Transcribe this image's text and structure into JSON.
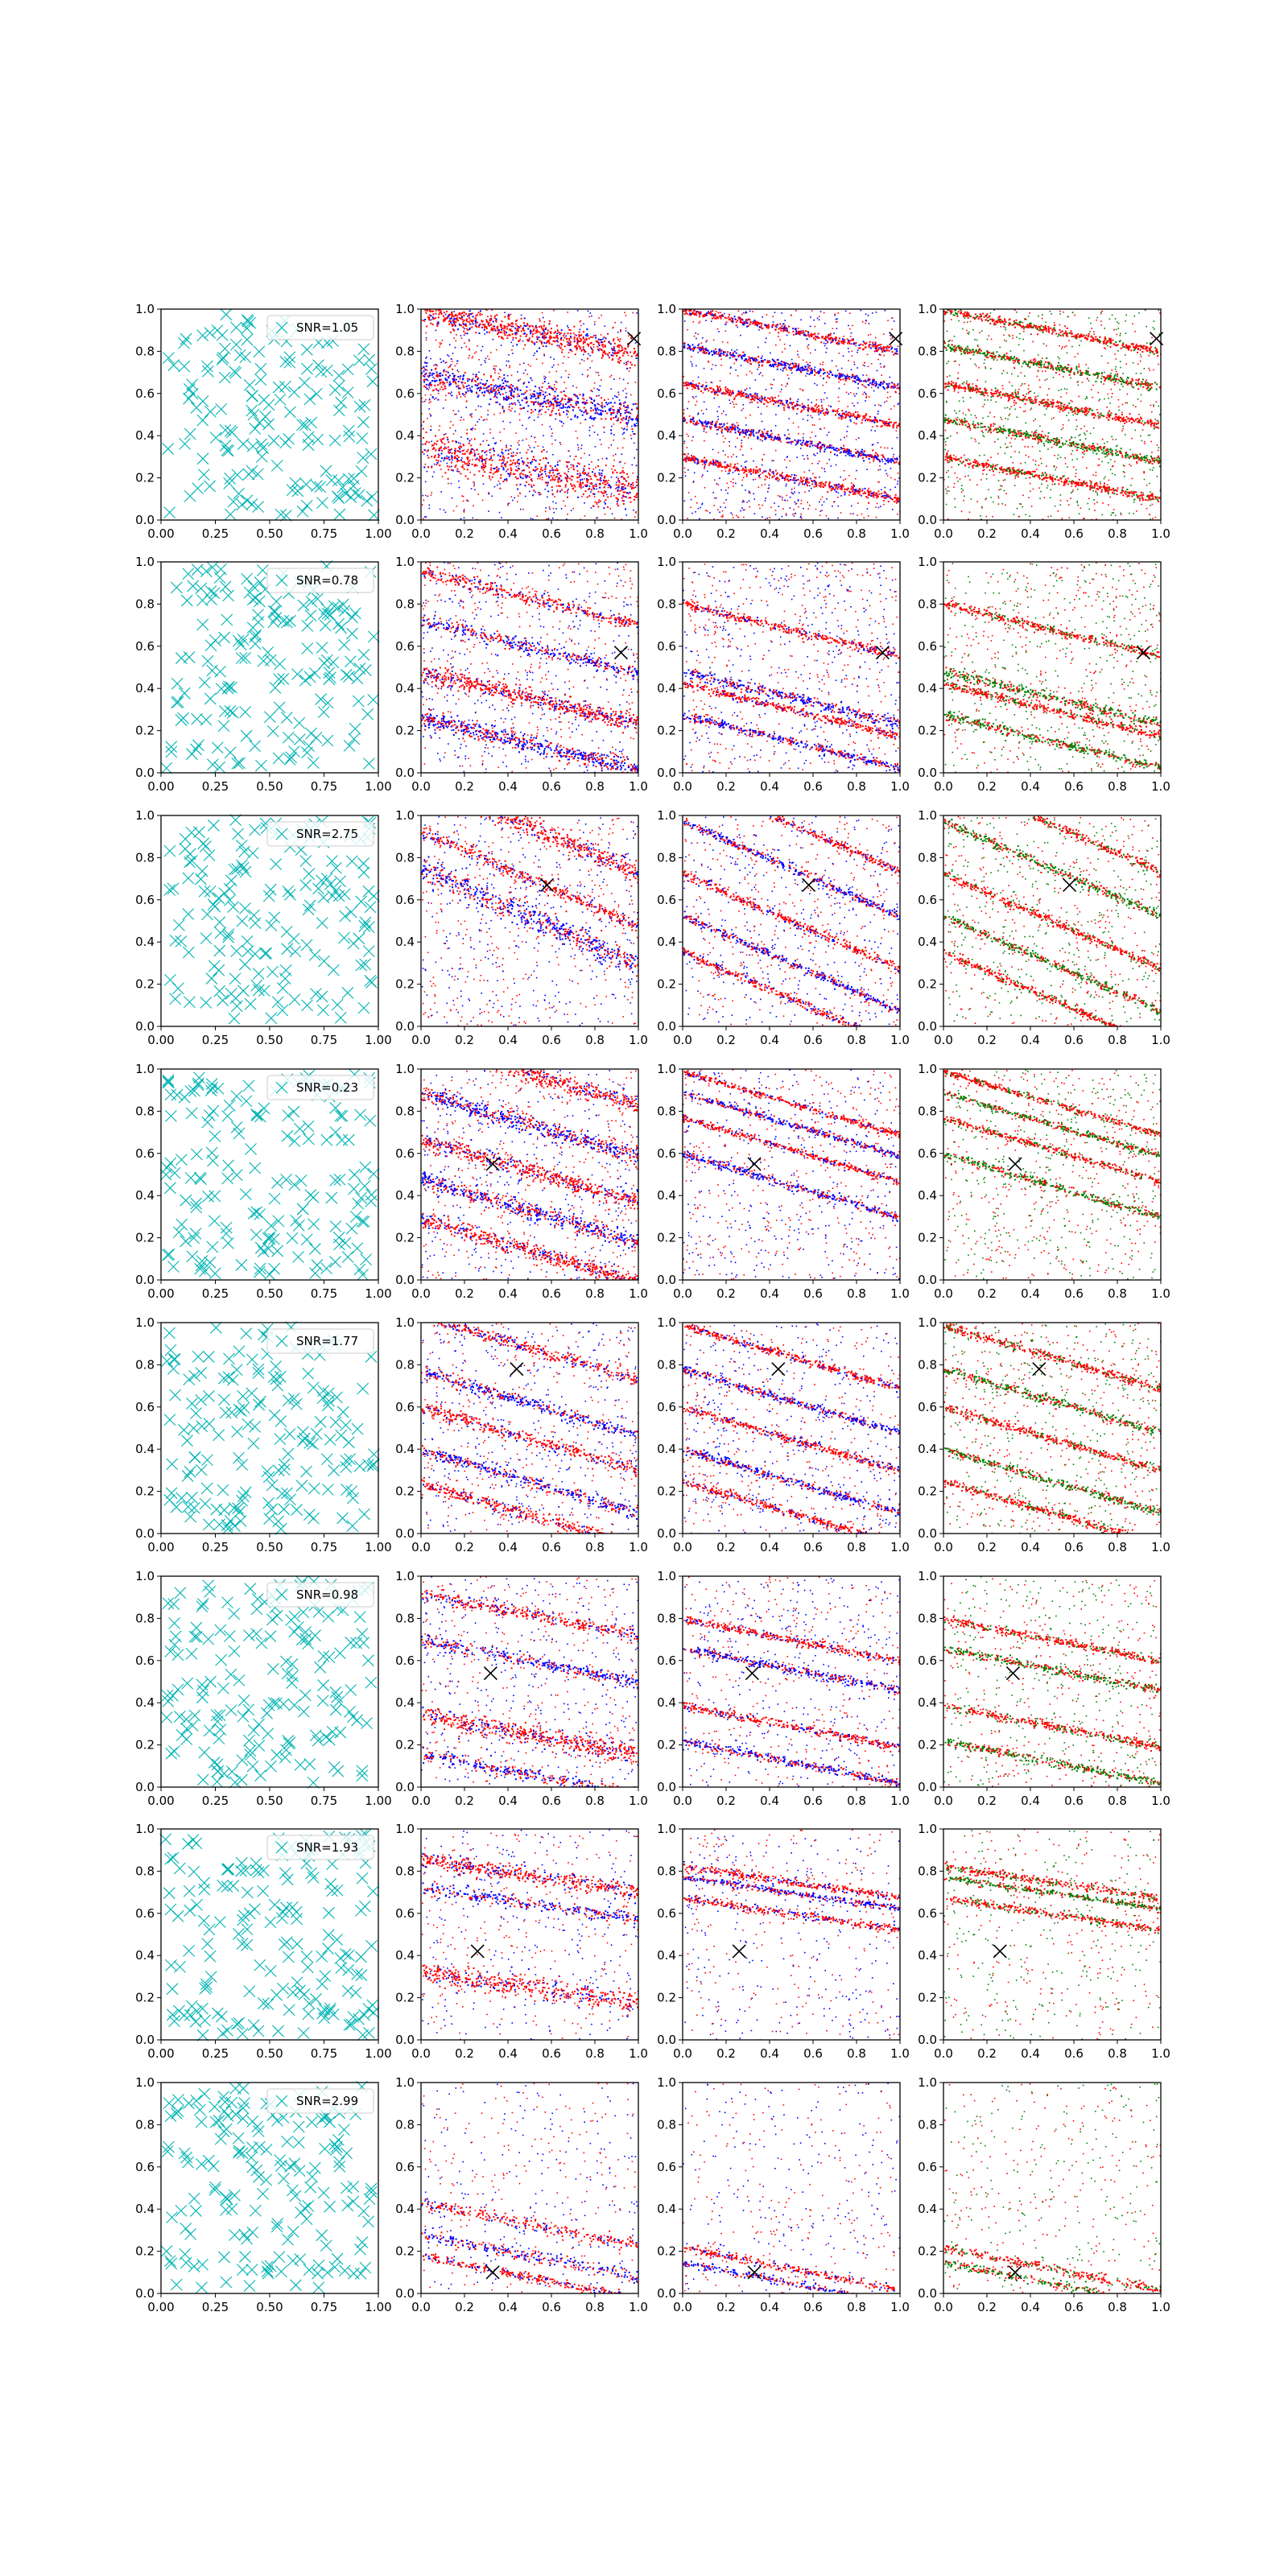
{
  "colors": {
    "marker": "#00b3b3",
    "red": "#ff0000",
    "blue": "#0000ff",
    "green": "#008000",
    "cross": "#000000",
    "axis": "#000000"
  },
  "tick_labels": {
    "left_x": [
      "0.00",
      "0.25",
      "0.50",
      "0.75",
      "1.00"
    ],
    "y": [
      "0.0",
      "0.2",
      "0.4",
      "0.6",
      "0.8",
      "1.0"
    ],
    "other_x": [
      "0.0",
      "0.2",
      "0.4",
      "0.6",
      "0.8",
      "1.0"
    ]
  },
  "chart_data": {
    "type": "scatter",
    "layout": "8 rows x 4 columns of scatter panels",
    "xlim": [
      0,
      1
    ],
    "ylim": [
      0,
      1
    ],
    "grid": false,
    "legend_placement": "upper right",
    "column_colors": [
      [
        "marker"
      ],
      [
        "red",
        "blue"
      ],
      [
        "red",
        "blue"
      ],
      [
        "red",
        "green"
      ]
    ],
    "rows": [
      {
        "legend": "SNR=1.05",
        "cross": [
          0.98,
          0.86
        ],
        "slope": -0.2,
        "bands2": [
          [
            0.89,
            0.06
          ],
          [
            0.59,
            0.07
          ],
          [
            0.24,
            0.09
          ]
        ],
        "bands3": [
          [
            0.9,
            0.02
          ],
          [
            0.73,
            0.02
          ],
          [
            0.55,
            0.02
          ],
          [
            0.38,
            0.02
          ],
          [
            0.2,
            0.02
          ]
        ],
        "density": [
          1.0,
          0.75
        ]
      },
      {
        "legend": "SNR=0.78",
        "cross": [
          0.92,
          0.57
        ],
        "slope": -0.25,
        "bands2": [
          [
            0.83,
            0.03
          ],
          [
            0.6,
            0.03
          ],
          [
            0.36,
            0.04
          ],
          [
            0.14,
            0.04
          ]
        ],
        "bands3": [
          [
            0.68,
            0.02
          ],
          [
            0.36,
            0.025
          ],
          [
            0.3,
            0.02
          ],
          [
            0.15,
            0.02
          ]
        ],
        "density": [
          0.85,
          0.6
        ]
      },
      {
        "legend": "SNR=2.75",
        "cross": [
          0.58,
          0.67
        ],
        "slope": -0.45,
        "bands2": [
          [
            0.95,
            0.05
          ],
          [
            0.52,
            0.06
          ],
          [
            0.7,
            0.03
          ]
        ],
        "bands3": [
          [
            0.96,
            0.02
          ],
          [
            0.75,
            0.02
          ],
          [
            0.5,
            0.02
          ],
          [
            0.3,
            0.02
          ],
          [
            0.13,
            0.02
          ]
        ],
        "density": [
          0.8,
          0.6
        ]
      },
      {
        "legend": "SNR=0.23",
        "cross": [
          0.33,
          0.55
        ],
        "slope": -0.3,
        "bands2": [
          [
            0.98,
            0.04
          ],
          [
            0.74,
            0.04
          ],
          [
            0.52,
            0.04
          ],
          [
            0.33,
            0.04
          ],
          [
            0.14,
            0.04
          ]
        ],
        "bands3": [
          [
            0.84,
            0.015
          ],
          [
            0.74,
            0.015
          ],
          [
            0.62,
            0.015
          ],
          [
            0.45,
            0.02
          ]
        ],
        "density": [
          0.8,
          0.55
        ]
      },
      {
        "legend": "SNR=1.77",
        "cross": [
          0.44,
          0.78
        ],
        "slope": -0.3,
        "bands2": [
          [
            0.88,
            0.03
          ],
          [
            0.62,
            0.03
          ],
          [
            0.45,
            0.03
          ],
          [
            0.25,
            0.03
          ],
          [
            0.09,
            0.03
          ]
        ],
        "bands3": [
          [
            0.84,
            0.02
          ],
          [
            0.63,
            0.02
          ],
          [
            0.45,
            0.02
          ],
          [
            0.25,
            0.02
          ],
          [
            0.1,
            0.02
          ]
        ],
        "density": [
          0.75,
          0.6
        ]
      },
      {
        "legend": "SNR=0.98",
        "cross": [
          0.32,
          0.54
        ],
        "slope": -0.2,
        "bands2": [
          [
            0.82,
            0.03
          ],
          [
            0.6,
            0.03
          ],
          [
            0.25,
            0.05
          ],
          [
            0.06,
            0.03
          ]
        ],
        "bands3": [
          [
            0.7,
            0.02
          ],
          [
            0.56,
            0.02
          ],
          [
            0.29,
            0.02
          ],
          [
            0.12,
            0.02
          ]
        ],
        "density": [
          0.7,
          0.55
        ]
      },
      {
        "legend": "SNR=1.93",
        "cross": [
          0.26,
          0.42
        ],
        "slope": -0.15,
        "bands2": [
          [
            0.78,
            0.04
          ],
          [
            0.65,
            0.03
          ],
          [
            0.25,
            0.05
          ]
        ],
        "bands3": [
          [
            0.75,
            0.02
          ],
          [
            0.7,
            0.015
          ],
          [
            0.6,
            0.02
          ]
        ],
        "density": [
          0.55,
          0.45
        ]
      },
      {
        "legend": "SNR=2.99",
        "cross": [
          0.33,
          0.1
        ],
        "slope": -0.2,
        "bands2": [
          [
            0.33,
            0.03
          ],
          [
            0.18,
            0.03
          ],
          [
            0.08,
            0.02
          ]
        ],
        "bands3": [
          [
            0.12,
            0.02
          ],
          [
            0.05,
            0.02
          ]
        ],
        "density": [
          0.45,
          0.35
        ]
      }
    ]
  }
}
